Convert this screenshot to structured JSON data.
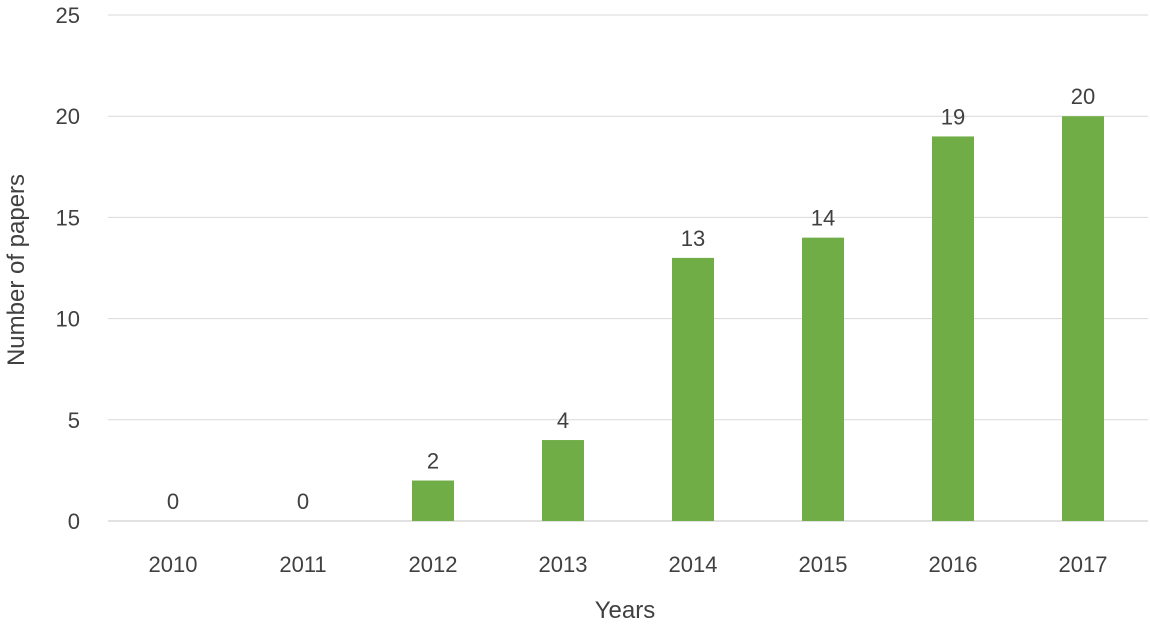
{
  "chart_data": {
    "type": "bar",
    "title": "",
    "xlabel": "Years",
    "ylabel": "Number of papers",
    "categories": [
      "2010",
      "2011",
      "2012",
      "2013",
      "2014",
      "2015",
      "2016",
      "2017"
    ],
    "values": [
      0,
      0,
      2,
      4,
      13,
      14,
      19,
      20
    ],
    "data_labels": [
      "0",
      "0",
      "2",
      "4",
      "13",
      "14",
      "19",
      "20"
    ],
    "yticks": [
      0,
      5,
      10,
      15,
      20,
      25
    ],
    "ytick_labels": [
      "0",
      "5",
      "10",
      "15",
      "20",
      "25"
    ],
    "ylim": [
      0,
      25
    ],
    "grid": true,
    "legend": "none",
    "bar_color": "#70ad47",
    "text_color": "#404040",
    "grid_color": "#d9d9d9"
  }
}
